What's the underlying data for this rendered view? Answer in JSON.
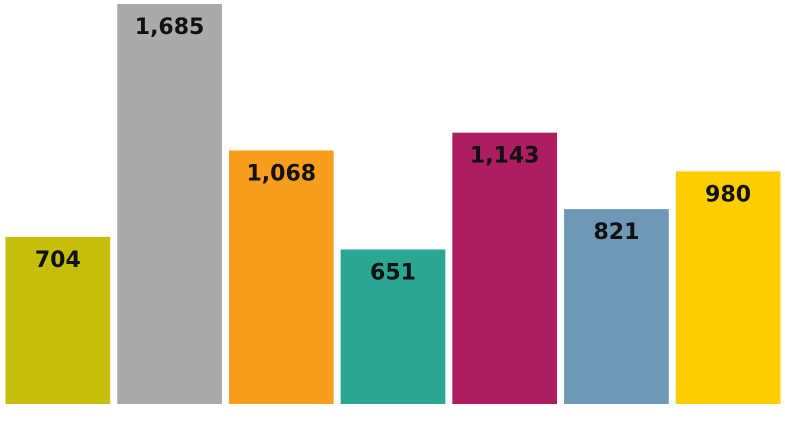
{
  "chart_data": {
    "type": "bar",
    "categories": [
      null,
      null,
      null,
      null,
      null,
      null,
      null
    ],
    "values": [
      704,
      1685,
      1068,
      651,
      1143,
      821,
      980
    ],
    "value_labels": [
      "704",
      "1,685",
      "1,068",
      "651",
      "1,143",
      "821",
      "980"
    ],
    "colors": [
      "#c5bf0b",
      "#aaaaaa",
      "#f99d1c",
      "#2aa693",
      "#ac1d62",
      "#6d99b7",
      "#fecd00"
    ]
  }
}
